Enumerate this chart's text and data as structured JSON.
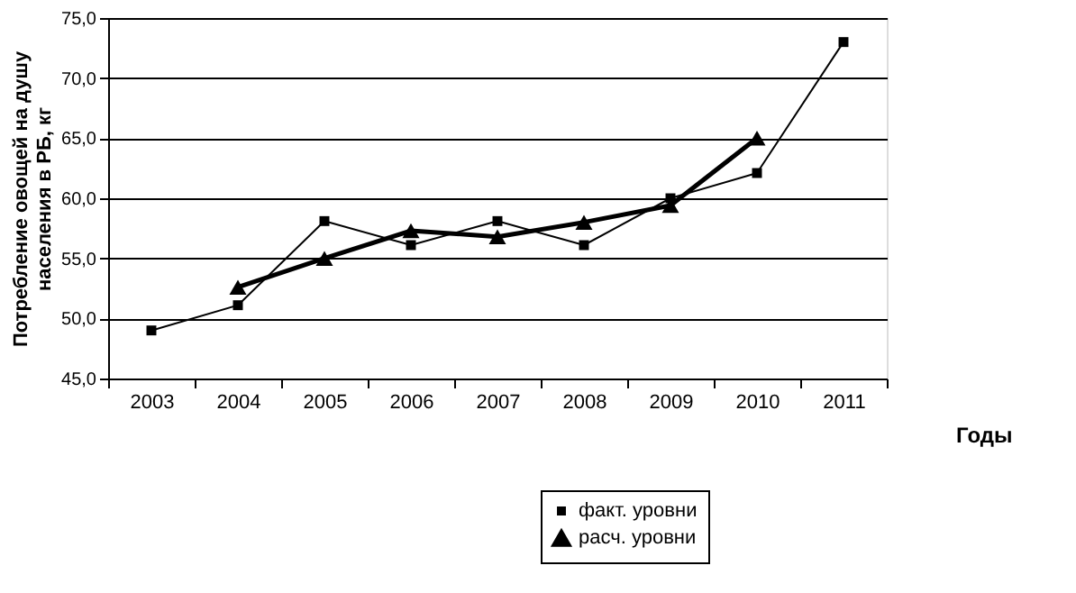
{
  "chart_data": {
    "type": "line",
    "ylabel": "Потребление овощей на душу населения в РБ, кг",
    "xlabel": "Годы",
    "categories": [
      "2003",
      "2004",
      "2005",
      "2006",
      "2007",
      "2008",
      "2009",
      "2010",
      "2011"
    ],
    "series": [
      {
        "name": "факт. уровни",
        "color": "#000000",
        "marker": "square",
        "values": [
          49.0,
          51.1,
          58.1,
          56.1,
          58.1,
          56.1,
          60.0,
          62.1,
          73.0
        ]
      },
      {
        "name": "расч. уровни",
        "color": "#000000",
        "marker": "triangle",
        "values": [
          null,
          52.6,
          55.0,
          57.3,
          56.8,
          58.0,
          59.4,
          65.0,
          null
        ]
      }
    ],
    "ylim": [
      45,
      75
    ],
    "yticks": [
      {
        "value": 45,
        "label": "45,0"
      },
      {
        "value": 50,
        "label": "50,0"
      },
      {
        "value": 55,
        "label": "55,0"
      },
      {
        "value": 60,
        "label": "60,0"
      },
      {
        "value": 65,
        "label": "65,0"
      },
      {
        "value": 70,
        "label": "70,0"
      },
      {
        "value": 75,
        "label": "75,0"
      }
    ],
    "grid": "y",
    "legend": "bottom"
  }
}
